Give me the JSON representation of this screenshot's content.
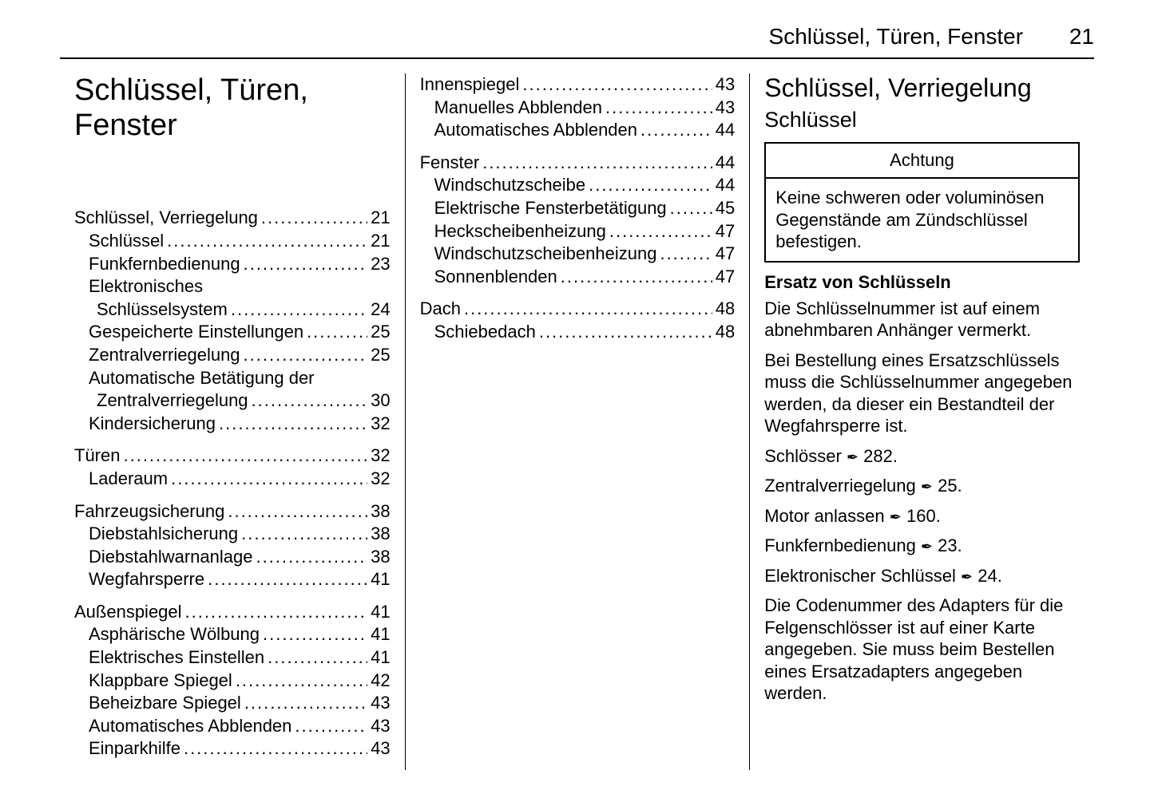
{
  "header": {
    "title": "Schlüssel, Türen, Fenster",
    "page": "21"
  },
  "chapter_title_line1": "Schlüssel, Türen,",
  "chapter_title_line2": "Fenster",
  "toc": {
    "col1": [
      {
        "type": "group",
        "items": [
          {
            "label": "Schlüssel, Verriegelung",
            "page": "21",
            "indent": 0
          },
          {
            "label": "Schlüssel",
            "page": "21",
            "indent": 1
          },
          {
            "label": "Funkfernbedienung",
            "page": "23",
            "indent": 1
          },
          {
            "label_wrap": "Elektronisches",
            "indent": 1
          },
          {
            "label": "Schlüsselsystem",
            "page": "24",
            "indent": 2,
            "cont": true
          },
          {
            "label": "Gespeicherte Einstellungen",
            "page": "25",
            "indent": 1
          },
          {
            "label": "Zentralverriegelung",
            "page": "25",
            "indent": 1
          },
          {
            "label_wrap": "Automatische Betätigung der",
            "indent": 1
          },
          {
            "label": "Zentralverriegelung",
            "page": "30",
            "indent": 2,
            "cont": true
          },
          {
            "label": "Kindersicherung",
            "page": "32",
            "indent": 1
          }
        ]
      },
      {
        "type": "group",
        "items": [
          {
            "label": "Türen",
            "page": "32",
            "indent": 0
          },
          {
            "label": "Laderaum",
            "page": "32",
            "indent": 1
          }
        ]
      },
      {
        "type": "group",
        "items": [
          {
            "label": "Fahrzeugsicherung",
            "page": "38",
            "indent": 0
          },
          {
            "label": "Diebstahlsicherung",
            "page": "38",
            "indent": 1
          },
          {
            "label": "Diebstahlwarnanlage",
            "page": "38",
            "indent": 1
          },
          {
            "label": "Wegfahrsperre",
            "page": "41",
            "indent": 1
          }
        ]
      },
      {
        "type": "group",
        "items": [
          {
            "label": "Außenspiegel",
            "page": "41",
            "indent": 0
          },
          {
            "label": "Asphärische Wölbung",
            "page": "41",
            "indent": 1
          },
          {
            "label": "Elektrisches Einstellen",
            "page": "41",
            "indent": 1
          },
          {
            "label": "Klappbare Spiegel",
            "page": "42",
            "indent": 1
          },
          {
            "label": "Beheizbare Spiegel",
            "page": "43",
            "indent": 1
          },
          {
            "label": "Automatisches Abblenden",
            "page": "43",
            "indent": 1
          },
          {
            "label": "Einparkhilfe",
            "page": "43",
            "indent": 1
          }
        ]
      }
    ],
    "col2": [
      {
        "type": "group",
        "items": [
          {
            "label": "Innenspiegel",
            "page": "43",
            "indent": 0
          },
          {
            "label": "Manuelles Abblenden",
            "page": "43",
            "indent": 1
          },
          {
            "label": "Automatisches Abblenden",
            "page": "44",
            "indent": 1
          }
        ]
      },
      {
        "type": "group",
        "items": [
          {
            "label": "Fenster",
            "page": "44",
            "indent": 0
          },
          {
            "label": "Windschutzscheibe",
            "page": "44",
            "indent": 1
          },
          {
            "label": "Elektrische Fensterbetätigung",
            "page": "45",
            "indent": 1
          },
          {
            "label": "Heckscheibenheizung",
            "page": "47",
            "indent": 1
          },
          {
            "label": "Windschutzscheibenheizung",
            "page": "47",
            "indent": 1
          },
          {
            "label": "Sonnenblenden",
            "page": "47",
            "indent": 1
          }
        ]
      },
      {
        "type": "group",
        "items": [
          {
            "label": "Dach",
            "page": "48",
            "indent": 0
          },
          {
            "label": "Schiebedach",
            "page": "48",
            "indent": 1
          }
        ]
      }
    ]
  },
  "content": {
    "h1": "Schlüssel, Verriegelung",
    "h2": "Schlüssel",
    "caution_title": "Achtung",
    "caution_body": "Keine schweren oder voluminö­sen Gegenstände am Zünd­schlüssel befestigen.",
    "h3": "Ersatz von Schlüsseln",
    "p1": "Die Schlüsselnummer ist auf einem abnehmbaren Anhänger vermerkt.",
    "p2": "Bei Bestellung eines Ersatzschlüs­sels muss die Schlüsselnummer angegeben werden, da dieser ein Bestandteil der Wegfahrsperre ist.",
    "xref1_label": "Schlösser",
    "xref1_page": "282",
    "xref2_label": "Zentralverriegelung",
    "xref2_page": "25",
    "xref3_label": "Motor anlassen",
    "xref3_page": "160",
    "xref4_label": "Funkfernbedienung",
    "xref4_page": "23",
    "xref5_label": "Elektronischer Schlüssel",
    "xref5_page": "24",
    "p3": "Die Codenummer des Adapters für die Felgenschlösser ist auf einer Karte angegeben. Sie muss beim Bestellen eines Ersatzadapters ange­geben werden."
  }
}
